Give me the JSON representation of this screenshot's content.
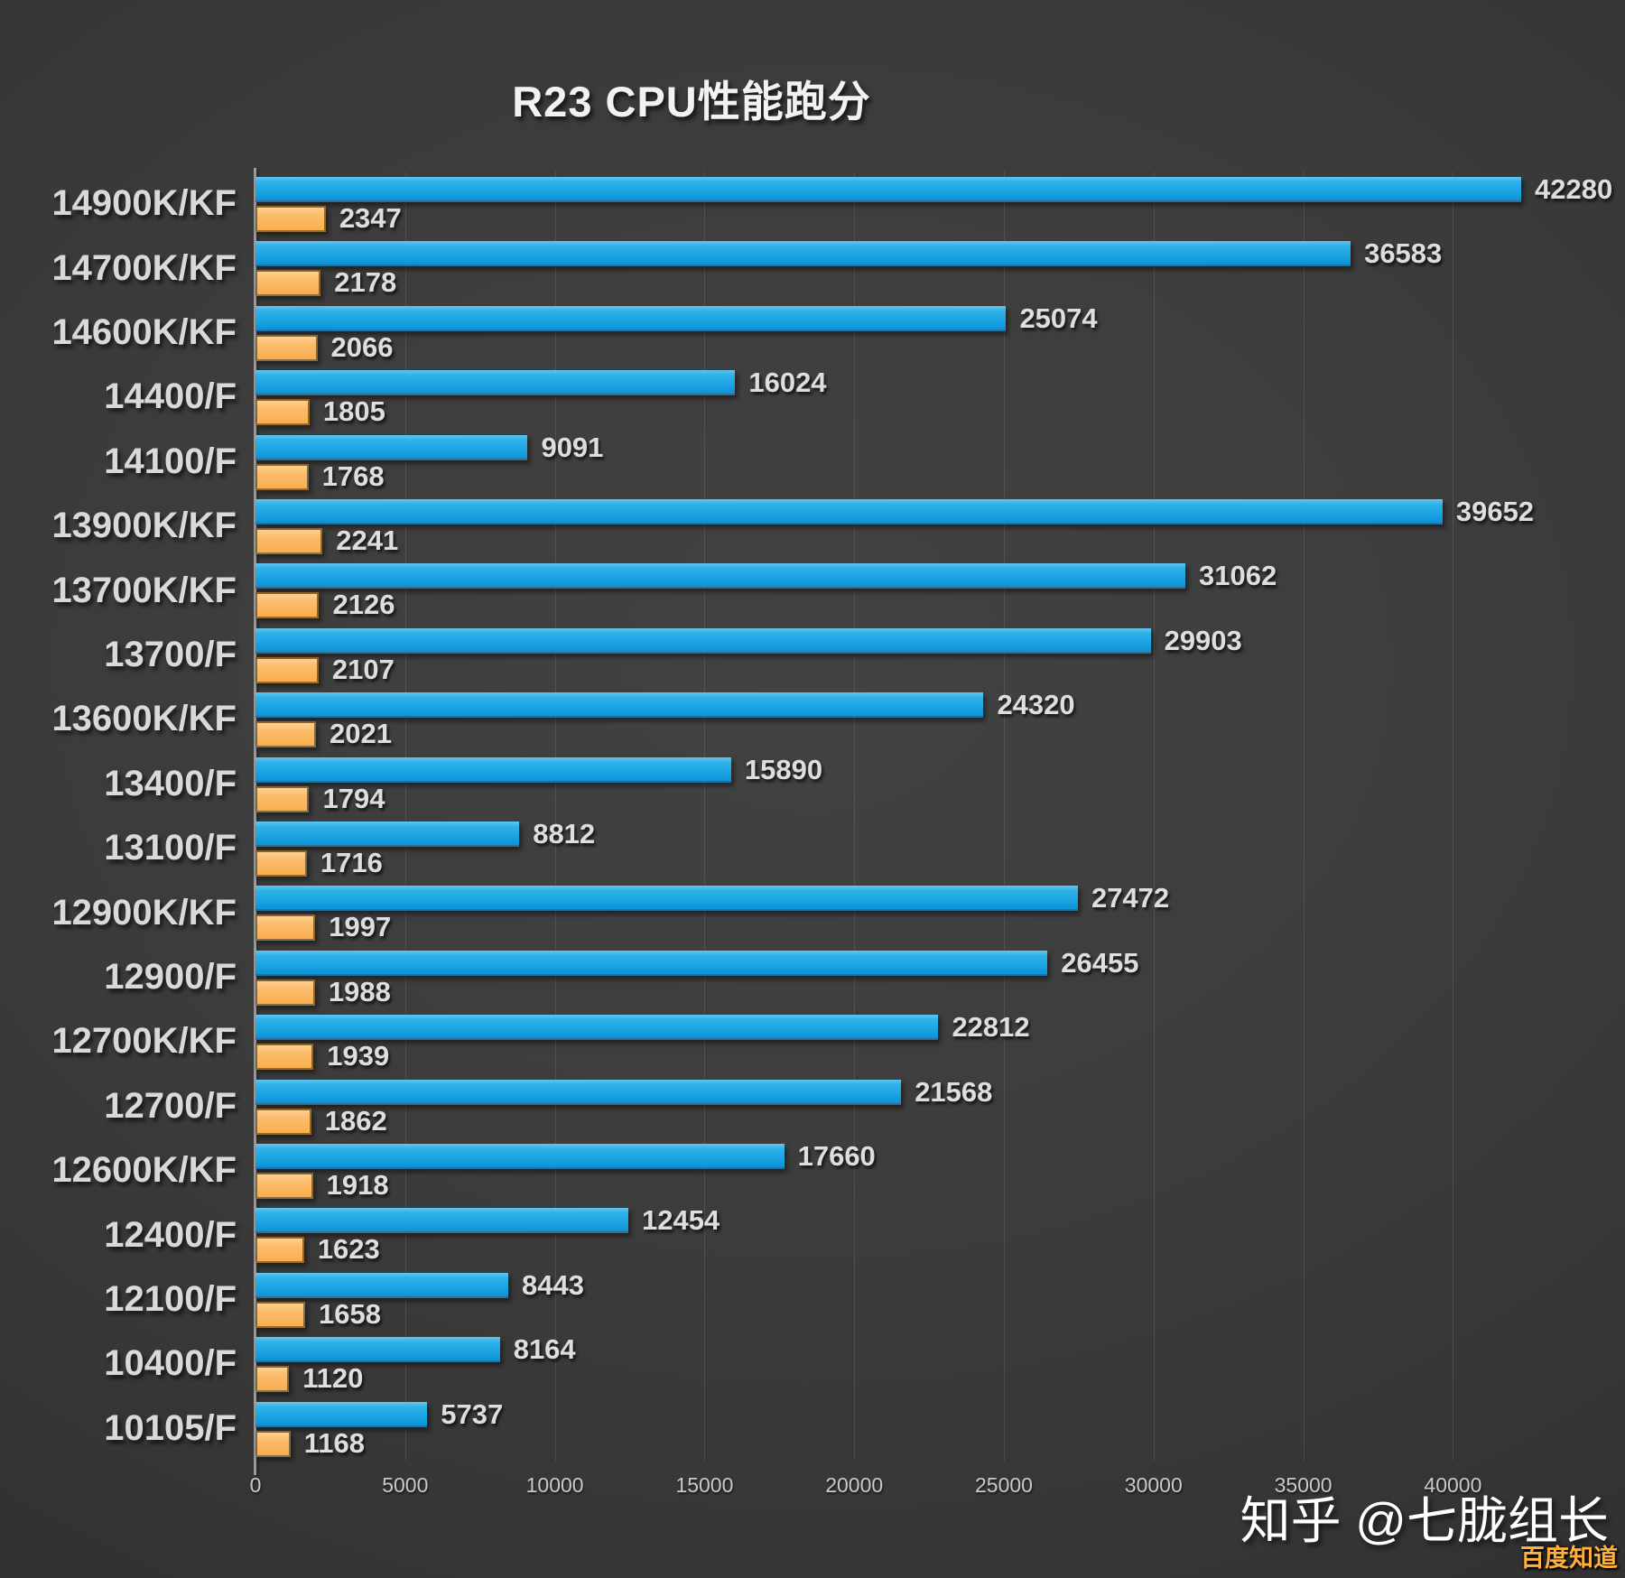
{
  "title": "R23 CPU性能跑分",
  "watermarks": {
    "zhihu": "知乎 @七胧组长",
    "corner": "百度知道"
  },
  "colors": {
    "background_center": "#424242",
    "background_edge": "#222222",
    "bar_blue": "#1EA7E4",
    "bar_orange": "#FBB45C",
    "axis_line": "#9A9A9A",
    "gridline": "rgba(255,255,255,0.10)",
    "category_text": "#D9D9D9",
    "value_text": "#DEDEDE",
    "tick_text": "#C9C9C9",
    "title_text": "#F2F2F2",
    "corner_watermark_text": "#FFAF3C"
  },
  "chart_data": {
    "type": "bar",
    "orientation": "horizontal",
    "title": "R23 CPU性能跑分",
    "categories": [
      "14900K/KF",
      "14700K/KF",
      "14600K/KF",
      "14400/F",
      "14100/F",
      "13900K/KF",
      "13700K/KF",
      "13700/F",
      "13600K/KF",
      "13400/F",
      "13100/F",
      "12900K/KF",
      "12900/F",
      "12700K/KF",
      "12700/F",
      "12600K/KF",
      "12400/F",
      "12100/F",
      "10400/F",
      "10105/F"
    ],
    "series": [
      {
        "name": "blue",
        "color": "#1EA7E4",
        "values": [
          42280,
          36583,
          25074,
          16024,
          9091,
          39652,
          31062,
          29903,
          24320,
          15890,
          8812,
          27472,
          26455,
          22812,
          21568,
          17660,
          12454,
          8443,
          8164,
          5737
        ]
      },
      {
        "name": "orange",
        "color": "#FBB45C",
        "values": [
          2347,
          2178,
          2066,
          1805,
          1768,
          2241,
          2126,
          2107,
          2021,
          1794,
          1716,
          1997,
          1988,
          1939,
          1862,
          1918,
          1623,
          1658,
          1120,
          1168
        ]
      }
    ],
    "xlim": [
      0,
      42280
    ],
    "x_ticks": [
      0,
      5000,
      10000,
      15000,
      20000,
      25000,
      30000,
      35000,
      40000
    ],
    "grid": true,
    "legend_position": "none"
  }
}
